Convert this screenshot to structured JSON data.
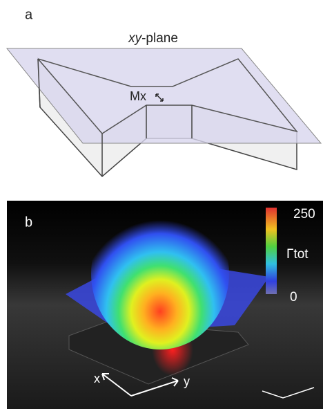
{
  "panel_a": {
    "label": "a",
    "plane_label": {
      "italic": "xy",
      "rest": "-plane"
    },
    "mode_label": "Mx"
  },
  "panel_b": {
    "label": "b",
    "colorbar": {
      "max_label": "250",
      "title": "Γtot",
      "min_label": "0"
    },
    "axes": {
      "x": "x",
      "y": "y"
    }
  }
}
